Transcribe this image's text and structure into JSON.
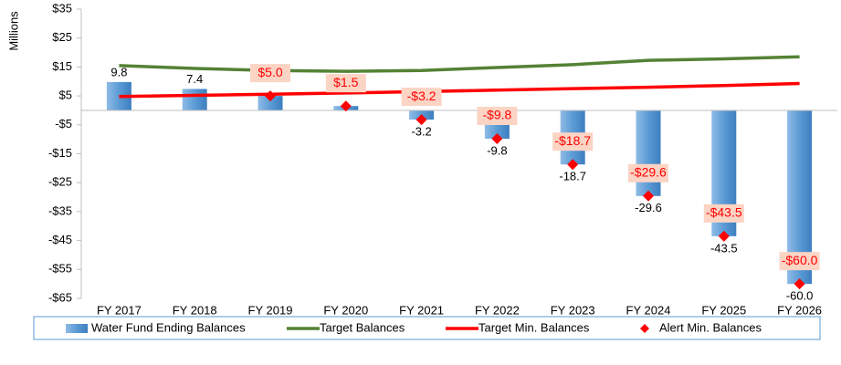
{
  "chart_data": {
    "type": "combo",
    "y_label": "Millions",
    "categories": [
      "FY 2017",
      "FY 2018",
      "FY 2019",
      "FY 2020",
      "FY 2021",
      "FY 2022",
      "FY 2023",
      "FY 2024",
      "FY 2025",
      "FY 2026"
    ],
    "ylim": [
      -65,
      35
    ],
    "yticks": [
      {
        "value": -65,
        "label": "-$65"
      },
      {
        "value": -55,
        "label": "-$55"
      },
      {
        "value": -45,
        "label": "-$45"
      },
      {
        "value": -35,
        "label": "-$35"
      },
      {
        "value": -25,
        "label": "-$25"
      },
      {
        "value": -15,
        "label": "-$15"
      },
      {
        "value": -5,
        "label": "-$5"
      },
      {
        "value": 5,
        "label": "$5"
      },
      {
        "value": 15,
        "label": "$15"
      },
      {
        "value": 25,
        "label": "$25"
      },
      {
        "value": 35,
        "label": "$35"
      }
    ],
    "series": [
      {
        "name": "Water Fund Ending Balances",
        "type": "bar",
        "color": "#5b9bd5",
        "values": [
          9.8,
          7.4,
          5.0,
          1.5,
          -3.2,
          -9.8,
          -18.7,
          -29.6,
          -43.5,
          -60.0
        ],
        "value_labels": [
          "9.8",
          "7.4",
          null,
          null,
          "-3.2",
          "-9.8",
          "-18.7",
          "-29.6",
          "-43.5",
          "-60.0"
        ]
      },
      {
        "name": "Target Balances",
        "type": "line",
        "color": "#548235",
        "values": [
          15.5,
          14.5,
          13.8,
          13.5,
          13.8,
          14.8,
          15.8,
          17.3,
          17.8,
          18.5
        ]
      },
      {
        "name": "Target Min. Balances",
        "type": "line",
        "color": "#ff0000",
        "values": [
          4.8,
          5.2,
          5.6,
          6.0,
          6.5,
          7.0,
          7.5,
          8.0,
          8.6,
          9.3
        ]
      },
      {
        "name": "Alert Min. Balances",
        "type": "scatter",
        "color": "#ff0000",
        "values": [
          null,
          null,
          5.0,
          1.5,
          -3.2,
          -9.8,
          -18.7,
          -29.6,
          -43.5,
          -60.0
        ],
        "value_labels": [
          null,
          null,
          "$5.0",
          "$1.5",
          "-$3.2",
          "-$9.8",
          "-$18.7",
          "-$29.6",
          "-$43.5",
          "-$60.0"
        ]
      }
    ],
    "legend": "bottom"
  }
}
